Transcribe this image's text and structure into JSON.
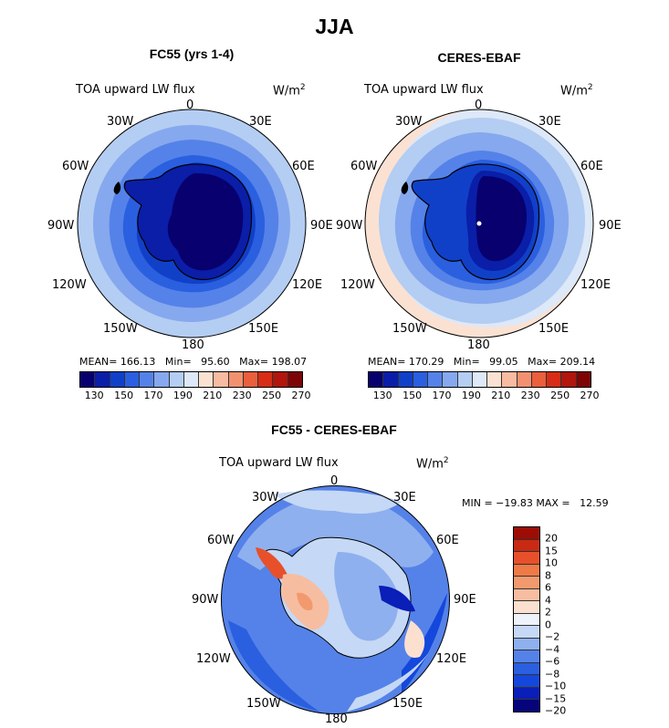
{
  "title": "JJA",
  "colors": {
    "main_scale": [
      "#08006e",
      "#0a1ea8",
      "#1140c8",
      "#2a5fe0",
      "#5582e8",
      "#86a8ee",
      "#b4cdf2",
      "#dde8f8",
      "#fbe1d2",
      "#f7bba0",
      "#f29170",
      "#ea5f3c",
      "#d72c16",
      "#b1150c",
      "#7e0505"
    ],
    "diff_scale": [
      "#06047a",
      "#0a1eb8",
      "#1447dc",
      "#2a5fe0",
      "#5582e8",
      "#8fb0ee",
      "#c5d8f5",
      "#eef3fb",
      "#fbe0d0",
      "#f7bda0",
      "#f3996e",
      "#ef7a48",
      "#e7502a",
      "#c92a14",
      "#9d0d05"
    ]
  },
  "panels": [
    {
      "title": "FC55 (yrs 1-4)",
      "variable": "TOA upward LW flux",
      "units": "W/m",
      "units_exp": "2",
      "stats": {
        "mean_label": "MEAN=",
        "mean": "166.13",
        "min_label": "Min=",
        "min": "95.60",
        "max_label": "Max=",
        "max": "198.07"
      },
      "lon_labels": {
        "n": "0",
        "nne": "30E",
        "ene": "60E",
        "e": "90E",
        "ese": "120E",
        "sse": "150E",
        "s": "180",
        "ssw": "150W",
        "wsw": "120W",
        "w": "90W",
        "wnw": "60W",
        "nnw": "30W"
      },
      "ticks": [
        "130",
        "150",
        "170",
        "190",
        "210",
        "230",
        "250",
        "270"
      ]
    },
    {
      "title": "CERES-EBAF",
      "variable": "TOA upward LW flux",
      "units": "W/m",
      "units_exp": "2",
      "stats": {
        "mean_label": "MEAN=",
        "mean": "170.29",
        "min_label": "Min=",
        "min": "99.05",
        "max_label": "Max=",
        "max": "209.14"
      },
      "lon_labels": {
        "n": "0",
        "nne": "30E",
        "ene": "60E",
        "e": "90E",
        "ese": "120E",
        "sse": "150E",
        "s": "180",
        "ssw": "150W",
        "wsw": "120W",
        "w": "90W",
        "wnw": "60W",
        "nnw": "30W"
      },
      "ticks": [
        "130",
        "150",
        "170",
        "190",
        "210",
        "230",
        "250",
        "270"
      ]
    }
  ],
  "diff_panel": {
    "title": "FC55 - CERES-EBAF",
    "variable": "TOA upward LW flux",
    "units": "W/m",
    "units_exp": "2",
    "minmax": "MIN = −19.83 MAX =   12.59",
    "lon_labels": {
      "n": "0",
      "nne": "30E",
      "ene": "60E",
      "e": "90E",
      "ese": "120E",
      "sse": "150E",
      "s": "180",
      "ssw": "150W",
      "wsw": "120W",
      "w": "90W",
      "wnw": "60W",
      "nnw": "30W"
    },
    "ticks": [
      "20",
      "15",
      "10",
      "8",
      "6",
      "4",
      "2",
      "0",
      "−2",
      "−4",
      "−6",
      "−8",
      "−10",
      "−15",
      "−20"
    ]
  }
}
